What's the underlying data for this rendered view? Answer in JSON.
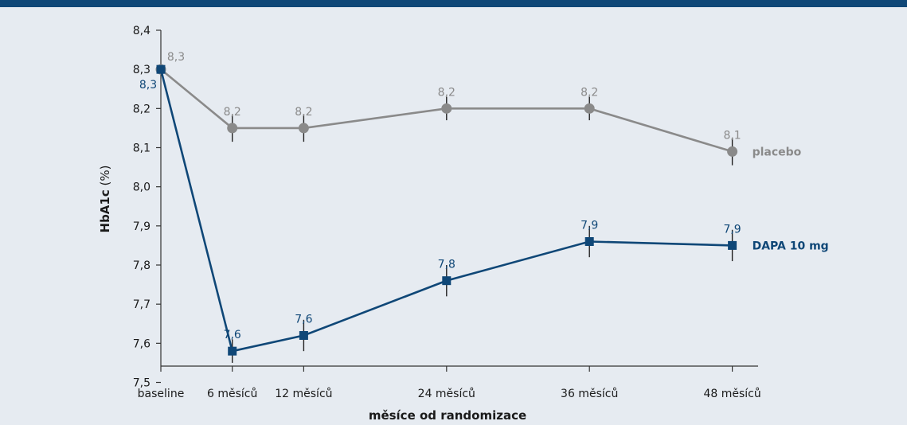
{
  "chart_data": {
    "type": "line",
    "ylabel_bold": "HbA1c",
    "ylabel_rest": " (%)",
    "xlabel": "měsíce od randomizace",
    "categories": [
      "baseline",
      "6 měsíců",
      "12 měsíců",
      "24 měsíců",
      "36 měsíců",
      "48 měsíců"
    ],
    "x_months": [
      0,
      6,
      12,
      24,
      36,
      48
    ],
    "ylim": [
      7.5,
      8.4
    ],
    "yticks": [
      "7,5",
      "7,6",
      "7,7",
      "7,8",
      "7,9",
      "8,0",
      "8,1",
      "8,2",
      "8,3",
      "8,4"
    ],
    "ytick_values": [
      7.5,
      7.6,
      7.7,
      7.8,
      7.9,
      8.0,
      8.1,
      8.2,
      8.3,
      8.4
    ],
    "series": [
      {
        "name": "placebo",
        "color": "#8a8a8a",
        "marker": "circle",
        "values": [
          8.3,
          8.15,
          8.15,
          8.2,
          8.2,
          8.09
        ],
        "error": [
          0,
          0.035,
          0.035,
          0.03,
          0.03,
          0.035
        ],
        "labels": [
          "8,3",
          "8,2",
          "8,2",
          "8,2",
          "8,2",
          "8,1"
        ]
      },
      {
        "name": "DAPA 10 mg",
        "color": "#0f4777",
        "marker": "square",
        "values": [
          8.3,
          7.58,
          7.62,
          7.76,
          7.86,
          7.85
        ],
        "error": [
          0,
          0.03,
          0.04,
          0.04,
          0.04,
          0.04
        ],
        "labels": [
          "8,3",
          "7,6",
          "7,6",
          "7,8",
          "7,9",
          "7,9"
        ]
      }
    ]
  }
}
